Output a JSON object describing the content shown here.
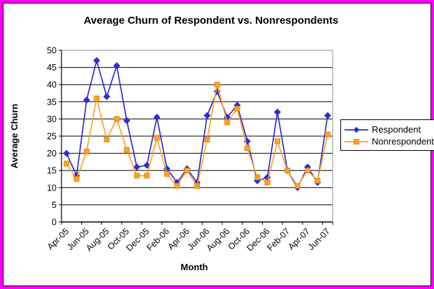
{
  "window": {
    "frame_color": "#FF00FF",
    "chart_background": "#FFFFFF",
    "chart_border_color": "#000000"
  },
  "chart_data": {
    "type": "line",
    "title": "Average Churn of Respondent vs. Nonrespondents",
    "xlabel": "Month",
    "ylabel": "Average Churn",
    "ylim": [
      0,
      50
    ],
    "y_ticks": [
      0,
      5,
      10,
      15,
      20,
      25,
      30,
      35,
      40,
      45,
      50
    ],
    "grid": true,
    "gridline_color": "#000000",
    "plot_border_color": "#8C8C8C",
    "legend_position": "right",
    "categories": [
      "Apr-05",
      "May-05",
      "Jun-05",
      "Jul-05",
      "Aug-05",
      "Sep-05",
      "Oct-05",
      "Nov-05",
      "Dec-05",
      "Jan-06",
      "Feb-06",
      "Mar-06",
      "Apr-06",
      "May-06",
      "Jun-06",
      "Jul-06",
      "Aug-06",
      "Sep-06",
      "Oct-06",
      "Nov-06",
      "Dec-06",
      "Jan-07",
      "Feb-07",
      "Mar-07",
      "Apr-07",
      "May-07",
      "Jun-07"
    ],
    "xtick_labels": [
      "Apr-05",
      "Jun-05",
      "Aug-05",
      "Oct-05",
      "Dec-05",
      "Feb-06",
      "Apr-06",
      "Jun-06",
      "Aug-06",
      "Oct-06",
      "Dec-06",
      "Feb-07",
      "Apr-07",
      "Jun-07"
    ],
    "series": [
      {
        "name": "Respondent",
        "color": "#2D2DD2",
        "marker": "diamond",
        "marker_color": "#2D2DD2",
        "values": [
          20,
          13.5,
          35.5,
          47,
          36.5,
          45.5,
          29.5,
          16,
          16.5,
          30.5,
          15.5,
          11.5,
          15.5,
          11.5,
          31,
          38,
          30.5,
          34,
          23.5,
          12,
          13,
          32,
          15,
          10,
          16,
          11.5,
          31
        ]
      },
      {
        "name": "Nonrespondent",
        "color": "#FFA028",
        "marker": "square",
        "marker_color": "#FFA028",
        "marker_stroke": "#E08A00",
        "values": [
          17,
          12.5,
          20.5,
          36,
          24,
          30,
          21,
          13.5,
          13.5,
          24.5,
          14,
          10.5,
          15,
          10.5,
          24,
          40,
          29,
          33,
          21.5,
          13,
          11.5,
          23.5,
          15,
          10.5,
          15,
          12,
          25.5
        ]
      }
    ]
  }
}
